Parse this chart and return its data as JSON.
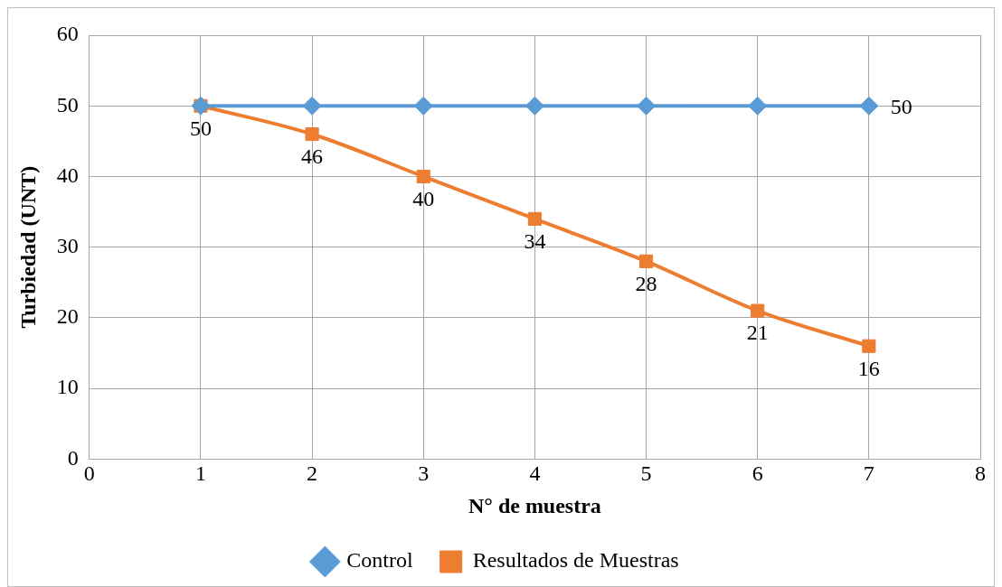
{
  "chart_data": {
    "type": "line",
    "xlabel": "N° de muestra",
    "ylabel": "Turbiedad (UNT)",
    "x": [
      1,
      2,
      3,
      4,
      5,
      6,
      7
    ],
    "series": [
      {
        "name": "Control",
        "color": "#5b9bd5",
        "marker": "diamond",
        "values": [
          50,
          50,
          50,
          50,
          50,
          50,
          50
        ],
        "value_labels": [
          null,
          null,
          null,
          null,
          null,
          null,
          "50"
        ]
      },
      {
        "name": "Resultados de Muestras",
        "color": "#ed7d31",
        "marker": "square",
        "values": [
          50,
          46,
          40,
          34,
          28,
          21,
          16
        ],
        "value_labels": [
          "50",
          "46",
          "40",
          "34",
          "28",
          "21",
          "16"
        ]
      }
    ],
    "xlim": [
      0,
      8
    ],
    "xticks": [
      0,
      1,
      2,
      3,
      4,
      5,
      6,
      7,
      8
    ],
    "ylim": [
      0,
      60
    ],
    "yticks": [
      0,
      10,
      20,
      30,
      40,
      50,
      60
    ],
    "grid": true,
    "legend": "bottom",
    "line_style": "solid"
  }
}
